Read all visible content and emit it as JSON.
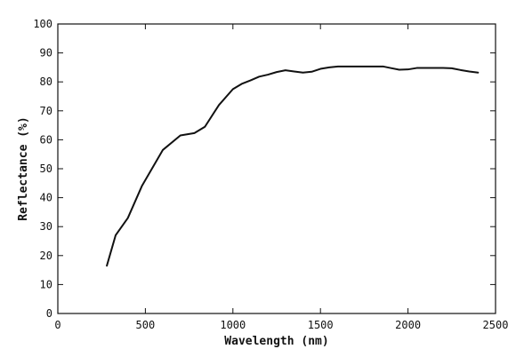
{
  "chart_data": {
    "type": "line",
    "title": "",
    "xlabel": "Wavelength (nm)",
    "ylabel": "Reflectance (%)",
    "xlim": [
      0,
      2500
    ],
    "ylim": [
      0,
      100
    ],
    "xticks": [
      0,
      500,
      1000,
      1500,
      2000,
      2500
    ],
    "yticks": [
      0,
      10,
      20,
      30,
      40,
      50,
      60,
      70,
      80,
      90,
      100
    ],
    "grid": false,
    "legend": "none",
    "series": [
      {
        "x": [
          280,
          330,
          400,
          480,
          600,
          700,
          780,
          840,
          920,
          1000,
          1050,
          1100,
          1150,
          1200,
          1250,
          1300,
          1350,
          1400,
          1450,
          1500,
          1550,
          1600,
          1700,
          1800,
          1860,
          1900,
          1950,
          2000,
          2050,
          2100,
          2200,
          2250,
          2300,
          2350,
          2400
        ],
        "y": [
          16.5,
          27,
          33,
          44,
          56.5,
          61.5,
          62.3,
          64.5,
          72,
          77.5,
          79.3,
          80.5,
          81.8,
          82.5,
          83.4,
          84,
          83.6,
          83.2,
          83.5,
          84.5,
          85,
          85.3,
          85.3,
          85.3,
          85.3,
          84.8,
          84.2,
          84.3,
          84.8,
          84.8,
          84.8,
          84.7,
          84.1,
          83.6,
          83.2
        ]
      }
    ],
    "colors": {
      "line": "#111111",
      "axes": "#111111",
      "background": "#ffffff"
    }
  }
}
